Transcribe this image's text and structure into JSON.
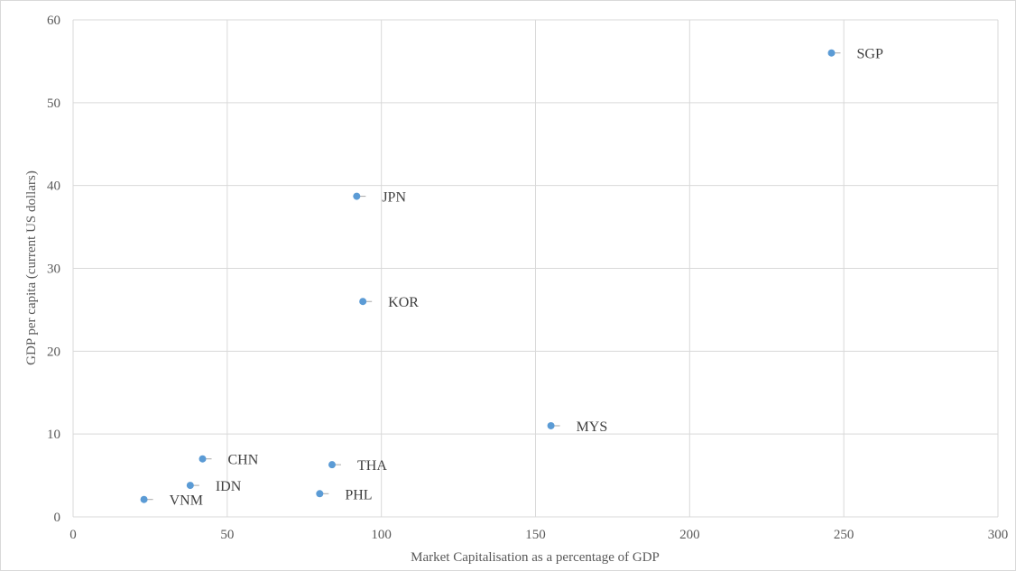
{
  "chart_data": {
    "type": "scatter",
    "xlabel": "Market Capitalisation  as a percentage of GDP",
    "ylabel": "GDP per capita (current US dollars)",
    "xlim": [
      0,
      300
    ],
    "ylim": [
      0,
      60
    ],
    "xticks": [
      0,
      50,
      100,
      150,
      200,
      250,
      300
    ],
    "yticks": [
      0,
      10,
      20,
      30,
      40,
      50,
      60
    ],
    "grid": true,
    "marker_color": "#5b9bd5",
    "points": [
      {
        "label": "SGP",
        "x": 246,
        "y": 56
      },
      {
        "label": "JPN",
        "x": 92,
        "y": 38.7
      },
      {
        "label": "KOR",
        "x": 94,
        "y": 26
      },
      {
        "label": "MYS",
        "x": 155,
        "y": 11
      },
      {
        "label": "CHN",
        "x": 42,
        "y": 7
      },
      {
        "label": "THA",
        "x": 84,
        "y": 6.3
      },
      {
        "label": "IDN",
        "x": 38,
        "y": 3.8
      },
      {
        "label": "PHL",
        "x": 80,
        "y": 2.8
      },
      {
        "label": "VNM",
        "x": 23,
        "y": 2.1
      }
    ]
  }
}
